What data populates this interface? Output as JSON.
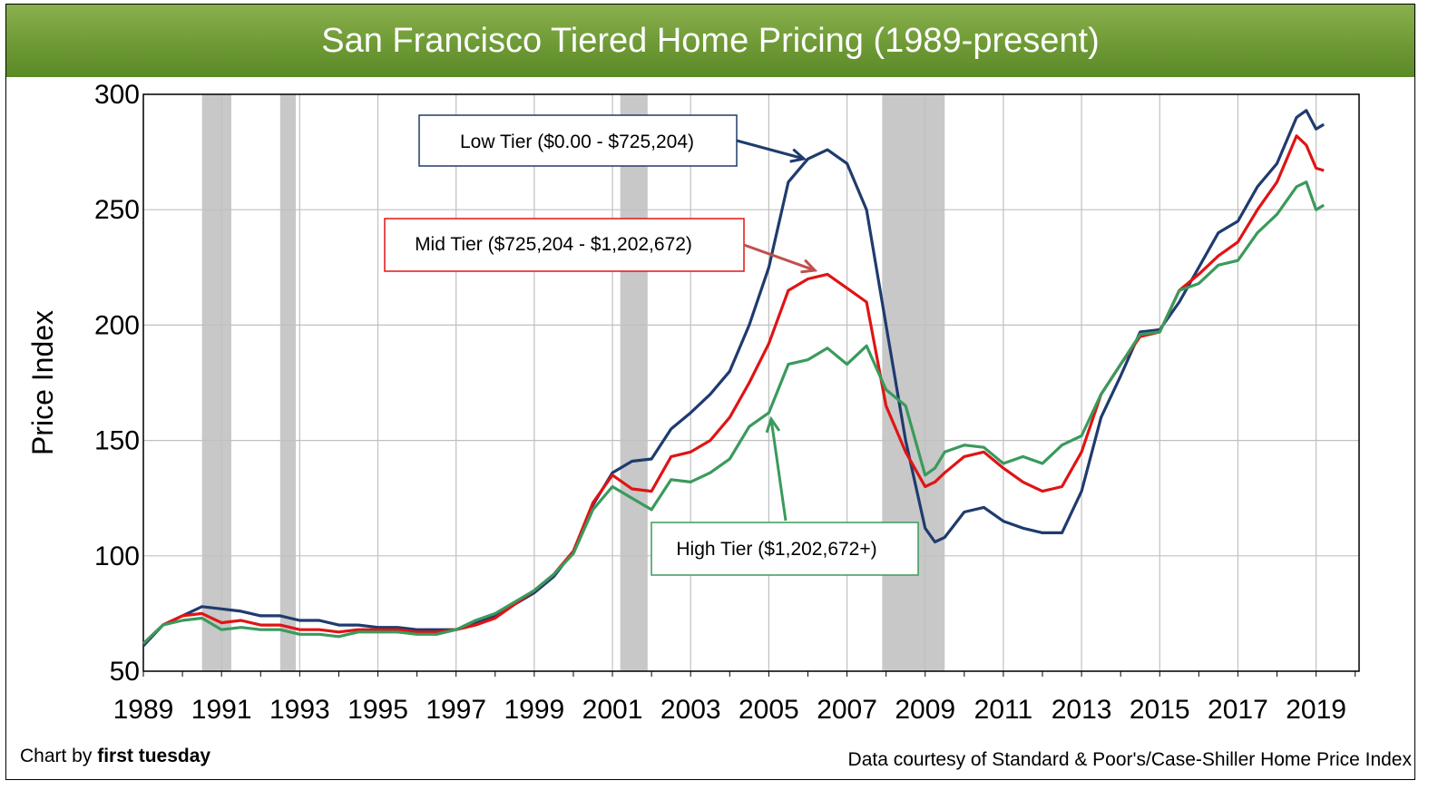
{
  "title": "San Francisco Tiered Home Pricing (1989-present)",
  "footer": {
    "credit_prefix": "Chart by ",
    "credit_brand": "first tuesday",
    "source": "Data courtesy of Standard & Poor's/Case-Shiller Home Price Index"
  },
  "colors": {
    "low": "#1f3b6e",
    "mid": "#e01414",
    "high": "#3a9a5c",
    "recession": "#c8c8c8",
    "grid": "#c0c0c0"
  },
  "chart_data": {
    "type": "line",
    "title": "San Francisco Tiered Home Pricing (1989-present)",
    "xlabel": "",
    "ylabel": "Price Index",
    "xlim": [
      1989,
      2020.1
    ],
    "ylim": [
      50,
      300
    ],
    "x_ticks": [
      "1989",
      "1991",
      "1993",
      "1995",
      "1997",
      "1999",
      "2001",
      "2003",
      "2005",
      "2007",
      "2009",
      "2011",
      "2013",
      "2015",
      "2017",
      "2019"
    ],
    "y_ticks": [
      "50",
      "100",
      "150",
      "200",
      "250",
      "300"
    ],
    "grid": true,
    "recessions": [
      [
        1990.5,
        1991.25
      ],
      [
        1992.5,
        1992.9
      ],
      [
        2001.2,
        2001.9
      ],
      [
        2007.9,
        2009.5
      ]
    ],
    "series": [
      {
        "name": "Low Tier ($0.00 - $725,204)",
        "key": "low",
        "x": [
          1989,
          1989.5,
          1990,
          1990.5,
          1991,
          1991.5,
          1992,
          1992.5,
          1993,
          1993.5,
          1994,
          1994.5,
          1995,
          1995.5,
          1996,
          1996.5,
          1997,
          1997.5,
          1998,
          1998.5,
          1999,
          1999.5,
          2000,
          2000.5,
          2001,
          2001.5,
          2002,
          2002.5,
          2003,
          2003.5,
          2004,
          2004.5,
          2005,
          2005.5,
          2006,
          2006.5,
          2007,
          2007.5,
          2008,
          2008.5,
          2009,
          2009.25,
          2009.5,
          2010,
          2010.5,
          2011,
          2011.5,
          2012,
          2012.5,
          2013,
          2013.5,
          2014,
          2014.5,
          2015,
          2015.5,
          2016,
          2016.5,
          2017,
          2017.5,
          2018,
          2018.5,
          2018.75,
          2019,
          2019.2
        ],
        "values": [
          61,
          70,
          74,
          78,
          77,
          76,
          74,
          74,
          72,
          72,
          70,
          70,
          69,
          69,
          68,
          68,
          68,
          71,
          74,
          79,
          84,
          91,
          102,
          122,
          136,
          141,
          142,
          155,
          162,
          170,
          180,
          200,
          225,
          262,
          272,
          276,
          270,
          250,
          200,
          150,
          112,
          106,
          108,
          119,
          121,
          115,
          112,
          110,
          110,
          128,
          160,
          178,
          197,
          198,
          210,
          225,
          240,
          245,
          260,
          270,
          290,
          293,
          285,
          287
        ]
      },
      {
        "name": "Mid Tier ($725,204 - $1,202,672)",
        "key": "mid",
        "x": [
          1989,
          1989.5,
          1990,
          1990.5,
          1991,
          1991.5,
          1992,
          1992.5,
          1993,
          1993.5,
          1994,
          1994.5,
          1995,
          1995.5,
          1996,
          1996.5,
          1997,
          1997.5,
          1998,
          1998.5,
          1999,
          1999.5,
          2000,
          2000.5,
          2001,
          2001.5,
          2002,
          2002.5,
          2003,
          2003.5,
          2004,
          2004.5,
          2005,
          2005.5,
          2006,
          2006.5,
          2007,
          2007.5,
          2008,
          2008.5,
          2009,
          2009.25,
          2009.5,
          2010,
          2010.5,
          2011,
          2011.5,
          2012,
          2012.5,
          2013,
          2013.5,
          2014,
          2014.5,
          2015,
          2015.5,
          2016,
          2016.5,
          2017,
          2017.5,
          2018,
          2018.5,
          2018.75,
          2019,
          2019.2
        ],
        "values": [
          62,
          70,
          74,
          75,
          71,
          72,
          70,
          70,
          68,
          68,
          67,
          68,
          68,
          68,
          67,
          67,
          68,
          70,
          73,
          79,
          85,
          92,
          102,
          123,
          135,
          129,
          128,
          143,
          145,
          150,
          160,
          175,
          192,
          215,
          220,
          222,
          216,
          210,
          165,
          145,
          130,
          132,
          136,
          143,
          145,
          138,
          132,
          128,
          130,
          145,
          170,
          183,
          195,
          197,
          215,
          222,
          230,
          236,
          250,
          262,
          282,
          278,
          268,
          267
        ]
      },
      {
        "name": "High Tier ($1,202,672+)",
        "key": "high",
        "x": [
          1989,
          1989.5,
          1990,
          1990.5,
          1991,
          1991.5,
          1992,
          1992.5,
          1993,
          1993.5,
          1994,
          1994.5,
          1995,
          1995.5,
          1996,
          1996.5,
          1997,
          1997.5,
          1998,
          1998.5,
          1999,
          1999.5,
          2000,
          2000.5,
          2001,
          2001.5,
          2002,
          2002.5,
          2003,
          2003.5,
          2004,
          2004.5,
          2005,
          2005.5,
          2006,
          2006.5,
          2007,
          2007.5,
          2008,
          2008.5,
          2009,
          2009.25,
          2009.5,
          2010,
          2010.5,
          2011,
          2011.5,
          2012,
          2012.5,
          2013,
          2013.5,
          2014,
          2014.5,
          2015,
          2015.5,
          2016,
          2016.5,
          2017,
          2017.5,
          2018,
          2018.5,
          2018.75,
          2019,
          2019.2
        ],
        "values": [
          62,
          70,
          72,
          73,
          68,
          69,
          68,
          68,
          66,
          66,
          65,
          67,
          67,
          67,
          66,
          66,
          68,
          72,
          75,
          80,
          85,
          92,
          101,
          120,
          130,
          125,
          120,
          133,
          132,
          136,
          142,
          156,
          162,
          183,
          185,
          190,
          183,
          191,
          172,
          165,
          135,
          138,
          145,
          148,
          147,
          140,
          143,
          140,
          148,
          152,
          170,
          183,
          196,
          197,
          215,
          218,
          226,
          228,
          240,
          248,
          260,
          262,
          250,
          252
        ]
      }
    ],
    "annotations": [
      {
        "key": "low",
        "label": "Low Tier ($0.00 - $725,204)"
      },
      {
        "key": "mid",
        "label": "Mid Tier ($725,204 - $1,202,672)"
      },
      {
        "key": "high",
        "label": "High Tier ($1,202,672+)"
      }
    ]
  }
}
